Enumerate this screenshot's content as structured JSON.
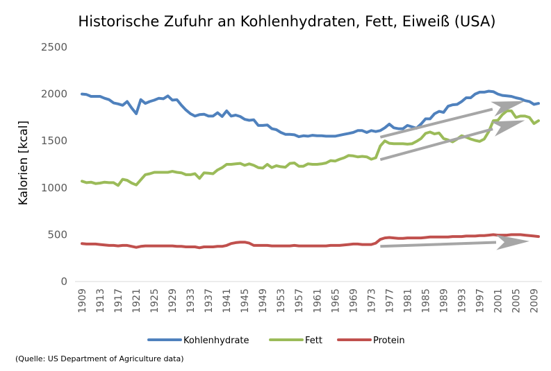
{
  "chart_data": {
    "type": "line",
    "title": "Historische Zufuhr an Kohlenhydraten, Fett, Eiweiß (USA)",
    "xlabel": "",
    "ylabel": "Kalorien [kcal]",
    "ylim": [
      0,
      2500
    ],
    "yticks": [
      0,
      500,
      1000,
      1500,
      2000,
      2500
    ],
    "xticks": [
      "1909",
      "1913",
      "1917",
      "1921",
      "1925",
      "1929",
      "1933",
      "1937",
      "1941",
      "1945",
      "1949",
      "1953",
      "1957",
      "1961",
      "1965",
      "1969",
      "1973",
      "1977",
      "1981",
      "1985",
      "1989",
      "1993",
      "1997",
      "2001",
      "2005",
      "2009"
    ],
    "grid": false,
    "legend_position": "bottom",
    "x": [
      1909,
      1910,
      1911,
      1912,
      1913,
      1914,
      1915,
      1916,
      1917,
      1918,
      1919,
      1920,
      1921,
      1922,
      1923,
      1924,
      1925,
      1926,
      1927,
      1928,
      1929,
      1930,
      1931,
      1932,
      1933,
      1934,
      1935,
      1936,
      1937,
      1938,
      1939,
      1940,
      1941,
      1942,
      1943,
      1944,
      1945,
      1946,
      1947,
      1948,
      1949,
      1950,
      1951,
      1952,
      1953,
      1954,
      1955,
      1956,
      1957,
      1958,
      1959,
      1960,
      1961,
      1962,
      1963,
      1964,
      1965,
      1966,
      1967,
      1968,
      1969,
      1970,
      1971,
      1972,
      1973,
      1974,
      1975,
      1976,
      1977,
      1978,
      1979,
      1980,
      1981,
      1982,
      1983,
      1984,
      1985,
      1986,
      1987,
      1988,
      1989,
      1990,
      1991,
      1992,
      1993,
      1994,
      1995,
      1996,
      1997,
      1998,
      1999,
      2000,
      2001,
      2002,
      2003,
      2004,
      2005,
      2006,
      2007,
      2008,
      2009,
      2010
    ],
    "series": [
      {
        "name": "Kohlenhydrate",
        "color": "#4F81BD",
        "values": [
          2000,
          1995,
          1975,
          1975,
          1975,
          1955,
          1940,
          1905,
          1895,
          1880,
          1920,
          1850,
          1790,
          1940,
          1900,
          1920,
          1935,
          1955,
          1950,
          1980,
          1935,
          1940,
          1880,
          1830,
          1790,
          1765,
          1780,
          1785,
          1765,
          1765,
          1800,
          1760,
          1820,
          1765,
          1775,
          1760,
          1730,
          1720,
          1725,
          1665,
          1665,
          1670,
          1630,
          1620,
          1590,
          1570,
          1570,
          1565,
          1545,
          1555,
          1550,
          1560,
          1555,
          1555,
          1550,
          1550,
          1550,
          1560,
          1570,
          1580,
          1590,
          1610,
          1610,
          1590,
          1610,
          1600,
          1610,
          1640,
          1680,
          1640,
          1630,
          1630,
          1665,
          1650,
          1635,
          1680,
          1735,
          1735,
          1790,
          1815,
          1805,
          1870,
          1885,
          1890,
          1920,
          1960,
          1960,
          2000,
          2020,
          2020,
          2030,
          2025,
          2000,
          1985,
          1980,
          1975,
          1960,
          1950,
          1930,
          1920,
          1890,
          1900
        ]
      },
      {
        "name": "Fett",
        "color": "#9BBB59",
        "values": [
          1070,
          1055,
          1060,
          1045,
          1050,
          1060,
          1055,
          1055,
          1025,
          1090,
          1080,
          1050,
          1030,
          1085,
          1140,
          1150,
          1165,
          1165,
          1165,
          1165,
          1175,
          1165,
          1160,
          1140,
          1140,
          1150,
          1100,
          1160,
          1155,
          1150,
          1190,
          1215,
          1250,
          1250,
          1255,
          1260,
          1240,
          1255,
          1240,
          1215,
          1210,
          1250,
          1215,
          1235,
          1225,
          1220,
          1260,
          1265,
          1230,
          1230,
          1255,
          1250,
          1250,
          1255,
          1265,
          1290,
          1285,
          1305,
          1320,
          1345,
          1340,
          1330,
          1335,
          1330,
          1305,
          1320,
          1445,
          1500,
          1475,
          1470,
          1470,
          1470,
          1465,
          1470,
          1495,
          1525,
          1580,
          1595,
          1575,
          1585,
          1525,
          1510,
          1490,
          1520,
          1555,
          1540,
          1520,
          1505,
          1495,
          1520,
          1600,
          1715,
          1720,
          1780,
          1820,
          1820,
          1750,
          1765,
          1765,
          1750,
          1685,
          1715
        ]
      },
      {
        "name": "Protein",
        "color": "#C0504D",
        "values": [
          405,
          400,
          400,
          400,
          395,
          390,
          385,
          385,
          380,
          385,
          385,
          375,
          365,
          375,
          380,
          380,
          380,
          380,
          380,
          380,
          380,
          375,
          375,
          370,
          370,
          370,
          360,
          370,
          370,
          370,
          375,
          375,
          385,
          405,
          415,
          420,
          420,
          410,
          385,
          385,
          385,
          385,
          380,
          380,
          380,
          380,
          380,
          385,
          380,
          380,
          380,
          380,
          380,
          380,
          380,
          385,
          385,
          385,
          390,
          395,
          400,
          400,
          395,
          395,
          395,
          410,
          450,
          465,
          470,
          465,
          460,
          460,
          465,
          465,
          465,
          465,
          470,
          475,
          475,
          475,
          475,
          475,
          480,
          480,
          480,
          485,
          485,
          485,
          490,
          490,
          495,
          500,
          495,
          495,
          495,
          500,
          500,
          500,
          495,
          490,
          485,
          480
        ]
      }
    ],
    "annotations": [
      {
        "type": "trend-arrow",
        "series": "Kohlenhydrate",
        "from": [
          1975,
          1540
        ],
        "to": [
          2007,
          1925
        ]
      },
      {
        "type": "trend-arrow",
        "series": "Fett",
        "from": [
          1975,
          1300
        ],
        "to": [
          2007,
          1720
        ]
      },
      {
        "type": "trend-arrow",
        "series": "Protein",
        "from": [
          1975,
          375
        ],
        "to": [
          2008,
          430
        ]
      }
    ],
    "annotation_color": "#A6A6A6",
    "source": "(Quelle: US Department of Agriculture data)"
  }
}
